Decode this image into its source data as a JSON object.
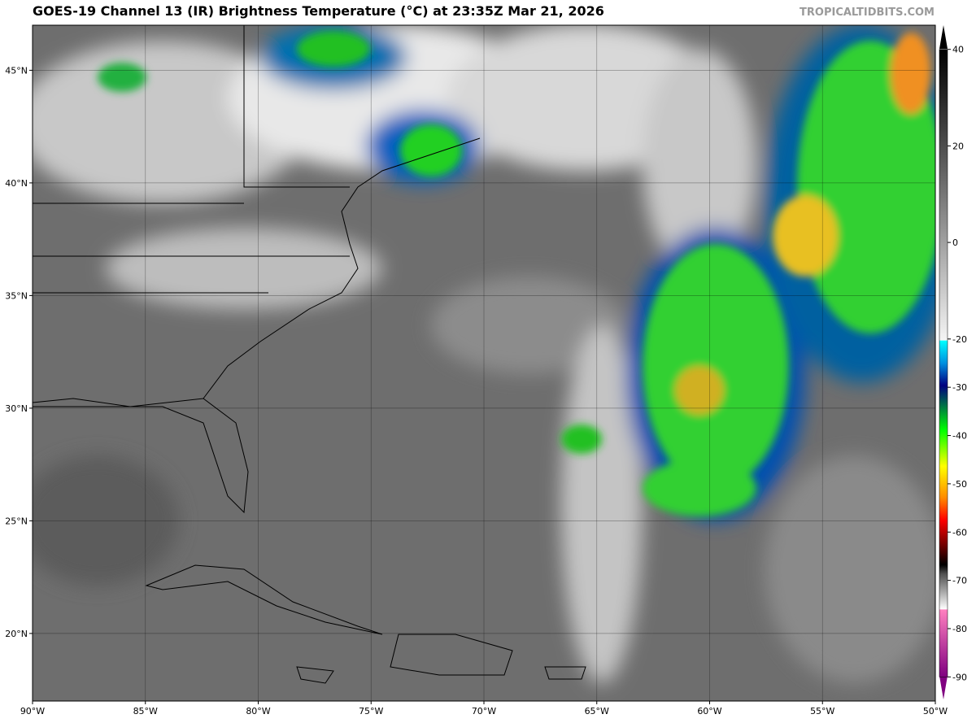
{
  "header": {
    "title": "GOES-19 Channel 13 (IR) Brightness Temperature (°C) at 23:35Z Mar 21, 2026",
    "credit": "TROPICALTIDBITS.COM"
  },
  "map": {
    "xlim": [
      -90,
      -50
    ],
    "ylim": [
      17,
      47
    ],
    "xticks": [
      {
        "value": -90,
        "label": "90°W"
      },
      {
        "value": -85,
        "label": "85°W"
      },
      {
        "value": -80,
        "label": "80°W"
      },
      {
        "value": -75,
        "label": "75°W"
      },
      {
        "value": -70,
        "label": "70°W"
      },
      {
        "value": -65,
        "label": "65°W"
      },
      {
        "value": -60,
        "label": "60°W"
      },
      {
        "value": -55,
        "label": "55°W"
      },
      {
        "value": -50,
        "label": "50°W"
      }
    ],
    "yticks": [
      {
        "value": 20,
        "label": "20°N"
      },
      {
        "value": 25,
        "label": "25°N"
      },
      {
        "value": 30,
        "label": "30°N"
      },
      {
        "value": 35,
        "label": "35°N"
      },
      {
        "value": 40,
        "label": "40°N"
      },
      {
        "value": 45,
        "label": "45°N"
      }
    ],
    "grid": true
  },
  "colorbar": {
    "lim": [
      -95,
      45
    ],
    "ticks": [
      40,
      20,
      0,
      -20,
      -30,
      -40,
      -50,
      -60,
      -70,
      -80,
      -90
    ],
    "stops": [
      {
        "value": 45,
        "color": "#000000"
      },
      {
        "value": 20,
        "color": "#5a5a5a"
      },
      {
        "value": 0,
        "color": "#a8a8a8"
      },
      {
        "value": -19.9,
        "color": "#f4f4f4"
      },
      {
        "value": -20,
        "color": "#00ffff"
      },
      {
        "value": -25,
        "color": "#0090e0"
      },
      {
        "value": -30,
        "color": "#000080"
      },
      {
        "value": -35,
        "color": "#008040"
      },
      {
        "value": -40,
        "color": "#00ff00"
      },
      {
        "value": -48,
        "color": "#ffff00"
      },
      {
        "value": -55,
        "color": "#ff8c00"
      },
      {
        "value": -60,
        "color": "#ff0000"
      },
      {
        "value": -65,
        "color": "#800000"
      },
      {
        "value": -70,
        "color": "#000000"
      },
      {
        "value": -72,
        "color": "#505050"
      },
      {
        "value": -79.9,
        "color": "#ffffff"
      },
      {
        "value": -80,
        "color": "#ff80c0"
      },
      {
        "value": -95,
        "color": "#800080"
      }
    ]
  }
}
